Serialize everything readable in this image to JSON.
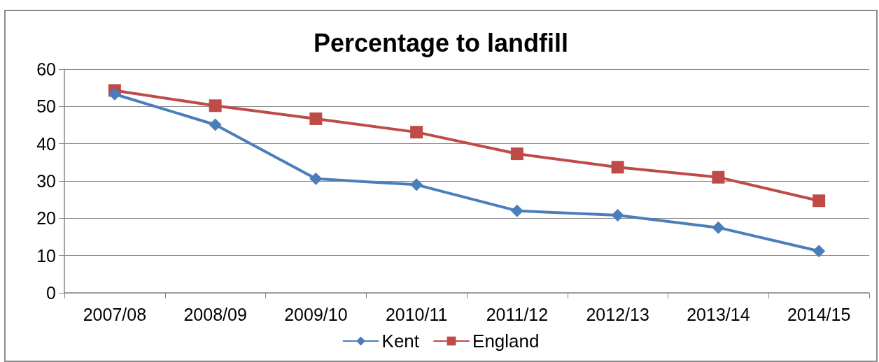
{
  "chart_data": {
    "type": "line",
    "title": "Percentage to landfill",
    "categories": [
      "2007/08",
      "2008/09",
      "2009/10",
      "2010/11",
      "2011/12",
      "2012/13",
      "2013/14",
      "2014/15"
    ],
    "series": [
      {
        "name": "Kent",
        "color": "#4a7ebb",
        "marker": "diamond",
        "values": [
          53.3,
          45.1,
          30.6,
          29,
          22,
          20.8,
          17.5,
          11.2
        ]
      },
      {
        "name": "England",
        "color": "#be4b48",
        "marker": "square",
        "values": [
          54.3,
          50.2,
          46.7,
          43.1,
          37.3,
          33.7,
          31,
          24.7
        ]
      }
    ],
    "ylim": [
      0,
      60
    ],
    "yticks": [
      0,
      10,
      20,
      30,
      40,
      50,
      60
    ],
    "grid": "y",
    "legend": "bottom",
    "line_style": "solid"
  }
}
